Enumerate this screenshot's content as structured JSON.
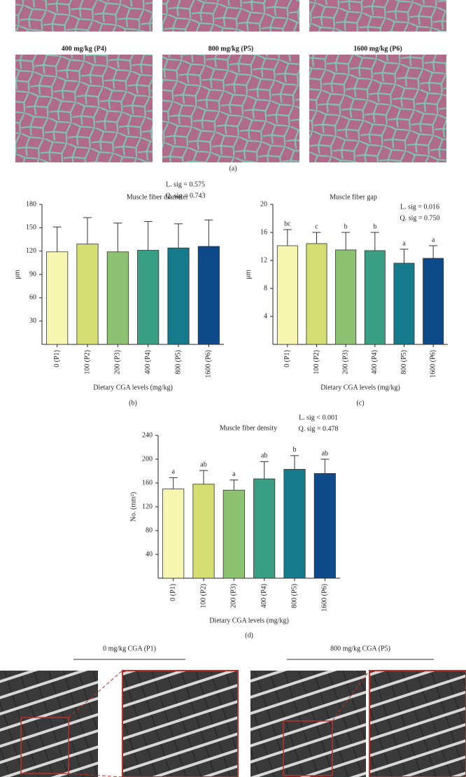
{
  "figure": {
    "micrograph_labels": [
      "400 mg/kg (P4)",
      "800 mg/kg (P5)",
      "1600 mg/kg (P6)"
    ],
    "panel_a": "(a)",
    "tem_labels": [
      "0 mg/kg CGA (P1)",
      "800 mg/kg CGA (P5)"
    ]
  },
  "chart_data": [
    {
      "type": "bar",
      "title": "Muscle fiber diameter",
      "panel": "(b)",
      "stats": [
        "L. sig = 0.575",
        "Q. sig = 0.743"
      ],
      "ylabel": "μm",
      "xlabel": "Dietary CGA levels (mg/kg)",
      "categories": [
        "0 (P1)",
        "100 (P2)",
        "200 (P3)",
        "400 (P4)",
        "800 (P5)",
        "1600 (P6)"
      ],
      "values": [
        119,
        129,
        119,
        121,
        124,
        126
      ],
      "errors": [
        32,
        34,
        37,
        37,
        31,
        34
      ],
      "colors": [
        "#f7f6b0",
        "#d4dd72",
        "#8fc172",
        "#3a9e82",
        "#147a8c",
        "#0e4a8a"
      ],
      "ylim": [
        0,
        180
      ],
      "yticks": [
        30,
        60,
        90,
        120,
        150,
        180
      ]
    },
    {
      "type": "bar",
      "title": "Muscle fiber gap",
      "panel": "(c)",
      "stats": [
        "L. sig = 0.016",
        "Q. sig = 0.750"
      ],
      "ylabel": "μm",
      "xlabel": "Dietary CGA levels (mg/kg)",
      "categories": [
        "0 (P1)",
        "100 (P2)",
        "200 (P3)",
        "400 (P4)",
        "800 (P5)",
        "1600 (P6)"
      ],
      "values": [
        14.1,
        14.4,
        13.5,
        13.4,
        11.6,
        12.3
      ],
      "errors": [
        2.3,
        1.6,
        2.5,
        2.6,
        2.0,
        1.8
      ],
      "letters": [
        "bc",
        "c",
        "b",
        "b",
        "a",
        "a"
      ],
      "colors": [
        "#f7f6b0",
        "#d4dd72",
        "#8fc172",
        "#3a9e82",
        "#147a8c",
        "#0e4a8a"
      ],
      "ylim": [
        0,
        20
      ],
      "yticks": [
        4,
        8,
        12,
        16,
        20
      ]
    },
    {
      "type": "bar",
      "title": "Muscle fiber density",
      "panel": "(d)",
      "stats": [
        "L. sig < 0.001",
        "Q. sig = 0.478"
      ],
      "ylabel": "No. (mm²)",
      "xlabel": "Dietary CGA levels (mg/kg)",
      "categories": [
        "0 (P1)",
        "100 (P2)",
        "200 (P3)",
        "400 (P4)",
        "800 (P5)",
        "1600 (P6)"
      ],
      "values": [
        150,
        158,
        148,
        167,
        183,
        176
      ],
      "errors": [
        19,
        23,
        17,
        29,
        23,
        24
      ],
      "letters": [
        "a",
        "ab",
        "a",
        "ab",
        "b",
        "ab"
      ],
      "colors": [
        "#f7f6b0",
        "#d4dd72",
        "#8fc172",
        "#3a9e82",
        "#147a8c",
        "#0e4a8a"
      ],
      "ylim": [
        0,
        240
      ],
      "yticks": [
        40,
        80,
        120,
        160,
        200,
        240
      ]
    }
  ]
}
